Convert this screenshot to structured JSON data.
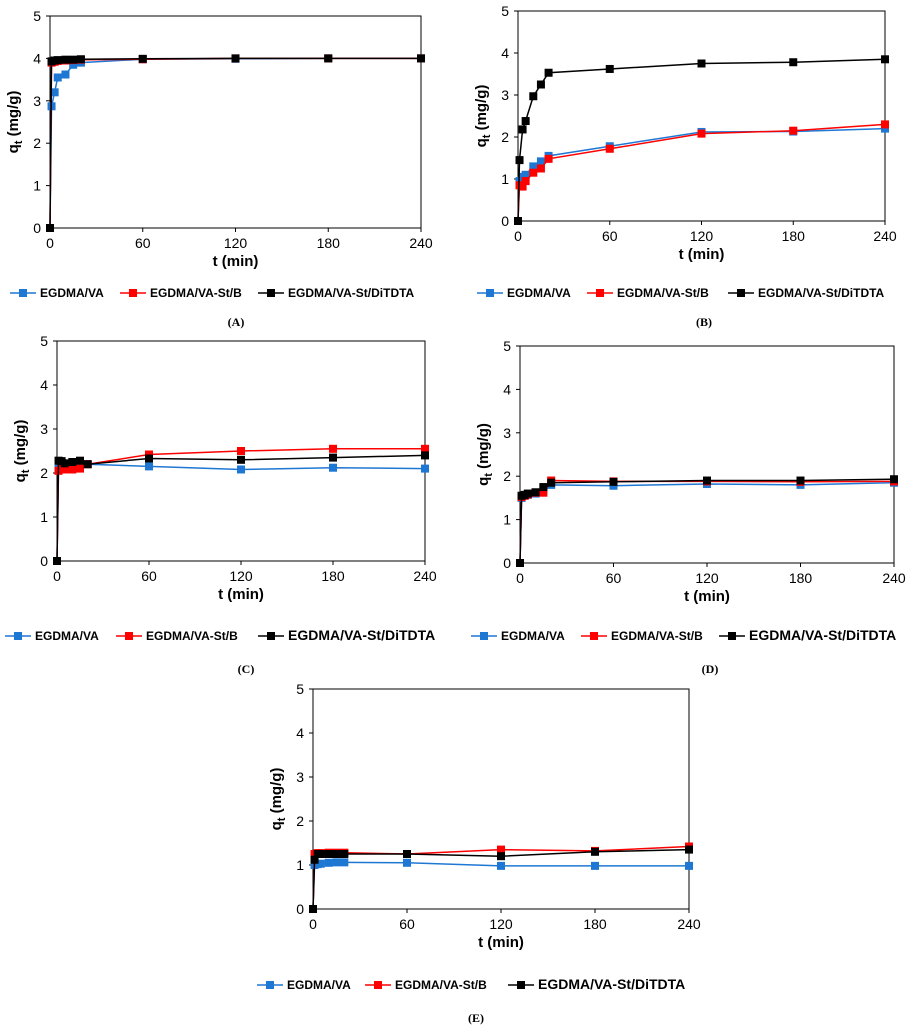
{
  "figure": {
    "colors": {
      "EGDMA/VA": "#1f77d4",
      "EGDMA/VA-St/B": "#ff0000",
      "EGDMA/VA-St/DiTDTA": "#000000"
    }
  },
  "chart_data": [
    {
      "id": "A",
      "panel_label": "(A)",
      "type": "line",
      "xlabel": "t (min)",
      "ylabel_main": "q",
      "ylabel_sub": "t",
      "ylabel_rest": " (mg/g)",
      "xlim": [
        0,
        240
      ],
      "ylim": [
        0,
        5
      ],
      "xticks": [
        0,
        60,
        120,
        180,
        240
      ],
      "yticks": [
        0,
        1,
        2,
        3,
        4,
        5
      ],
      "legend": [
        "EGDMA/VA",
        "EGDMA/VA-St/B",
        "EGDMA/VA-St/DiTDTA"
      ],
      "legend_large_last": false,
      "series": [
        {
          "name": "EGDMA/VA",
          "color": "#1f77d4",
          "points": [
            [
              0,
              0
            ],
            [
              1,
              2.87
            ],
            [
              3,
              3.2
            ],
            [
              5,
              3.55
            ],
            [
              10,
              3.62
            ],
            [
              15,
              3.85
            ],
            [
              20,
              3.9
            ],
            [
              60,
              3.98
            ],
            [
              120,
              3.99
            ],
            [
              180,
              4.0
            ],
            [
              240,
              4.0
            ]
          ]
        },
        {
          "name": "EGDMA/VA-St/B",
          "color": "#ff0000",
          "points": [
            [
              0,
              0
            ],
            [
              1,
              3.9
            ],
            [
              3,
              3.92
            ],
            [
              5,
              3.94
            ],
            [
              10,
              3.95
            ],
            [
              15,
              3.96
            ],
            [
              20,
              3.97
            ],
            [
              60,
              3.98
            ],
            [
              120,
              4.0
            ],
            [
              180,
              4.0
            ],
            [
              240,
              4.0
            ]
          ]
        },
        {
          "name": "EGDMA/VA-St/DiTDTA",
          "color": "#000000",
          "points": [
            [
              0,
              0
            ],
            [
              1,
              3.93
            ],
            [
              3,
              3.95
            ],
            [
              5,
              3.96
            ],
            [
              10,
              3.97
            ],
            [
              15,
              3.97
            ],
            [
              20,
              3.98
            ],
            [
              60,
              3.99
            ],
            [
              120,
              4.0
            ],
            [
              180,
              4.0
            ],
            [
              240,
              4.0
            ]
          ]
        }
      ]
    },
    {
      "id": "B",
      "panel_label": "(B)",
      "type": "line",
      "xlabel": "t (min)",
      "ylabel_main": "q",
      "ylabel_sub": "t",
      "ylabel_rest": " (mg/g)",
      "xlim": [
        0,
        240
      ],
      "ylim": [
        0,
        5
      ],
      "xticks": [
        0,
        60,
        120,
        180,
        240
      ],
      "yticks": [
        0,
        1,
        2,
        3,
        4,
        5
      ],
      "legend": [
        "EGDMA/VA",
        "EGDMA/VA-St/B",
        "EGDMA/VA-St/DiTDTA"
      ],
      "legend_large_last": false,
      "series": [
        {
          "name": "EGDMA/VA",
          "color": "#1f77d4",
          "points": [
            [
              0,
              0
            ],
            [
              1,
              0.95
            ],
            [
              3,
              1.05
            ],
            [
              5,
              1.1
            ],
            [
              10,
              1.3
            ],
            [
              15,
              1.42
            ],
            [
              20,
              1.55
            ],
            [
              60,
              1.78
            ],
            [
              120,
              2.12
            ],
            [
              180,
              2.13
            ],
            [
              240,
              2.2
            ]
          ]
        },
        {
          "name": "EGDMA/VA-St/B",
          "color": "#ff0000",
          "points": [
            [
              0,
              0
            ],
            [
              1,
              0.85
            ],
            [
              3,
              0.82
            ],
            [
              5,
              0.95
            ],
            [
              10,
              1.15
            ],
            [
              15,
              1.25
            ],
            [
              20,
              1.48
            ],
            [
              60,
              1.72
            ],
            [
              120,
              2.08
            ],
            [
              180,
              2.15
            ],
            [
              240,
              2.3
            ]
          ]
        },
        {
          "name": "EGDMA/VA-St/DiTDTA",
          "color": "#000000",
          "points": [
            [
              0,
              0
            ],
            [
              1,
              1.45
            ],
            [
              3,
              2.18
            ],
            [
              5,
              2.38
            ],
            [
              10,
              2.97
            ],
            [
              15,
              3.25
            ],
            [
              20,
              3.53
            ],
            [
              60,
              3.62
            ],
            [
              120,
              3.75
            ],
            [
              180,
              3.78
            ],
            [
              240,
              3.85
            ]
          ]
        }
      ]
    },
    {
      "id": "C",
      "panel_label": "(C)",
      "type": "line",
      "xlabel": "t (min)",
      "ylabel_main": "q",
      "ylabel_sub": "t",
      "ylabel_rest": " (mg/g)",
      "xlim": [
        0,
        240
      ],
      "ylim": [
        0,
        5
      ],
      "xticks": [
        0,
        60,
        120,
        180,
        240
      ],
      "yticks": [
        0,
        1,
        2,
        3,
        4,
        5
      ],
      "legend": [
        "EGDMA/VA",
        "EGDMA/VA-St/B",
        "EGDMA/VA-St/DiTDTA"
      ],
      "legend_large_last": true,
      "series": [
        {
          "name": "EGDMA/VA",
          "color": "#1f77d4",
          "points": [
            [
              0,
              0
            ],
            [
              1,
              2.1
            ],
            [
              3,
              2.12
            ],
            [
              5,
              2.15
            ],
            [
              10,
              2.15
            ],
            [
              15,
              2.18
            ],
            [
              20,
              2.2
            ],
            [
              60,
              2.15
            ],
            [
              120,
              2.08
            ],
            [
              180,
              2.12
            ],
            [
              240,
              2.1
            ]
          ]
        },
        {
          "name": "EGDMA/VA-St/B",
          "color": "#ff0000",
          "points": [
            [
              0,
              0
            ],
            [
              1,
              2.05
            ],
            [
              3,
              2.1
            ],
            [
              5,
              2.08
            ],
            [
              10,
              2.08
            ],
            [
              15,
              2.1
            ],
            [
              20,
              2.2
            ],
            [
              60,
              2.42
            ],
            [
              120,
              2.5
            ],
            [
              180,
              2.55
            ],
            [
              240,
              2.55
            ]
          ]
        },
        {
          "name": "EGDMA/VA-St/DiTDTA",
          "color": "#000000",
          "points": [
            [
              0,
              0
            ],
            [
              1,
              2.28
            ],
            [
              3,
              2.27
            ],
            [
              5,
              2.22
            ],
            [
              10,
              2.25
            ],
            [
              15,
              2.28
            ],
            [
              20,
              2.2
            ],
            [
              60,
              2.33
            ],
            [
              120,
              2.3
            ],
            [
              180,
              2.35
            ],
            [
              240,
              2.4
            ]
          ]
        }
      ]
    },
    {
      "id": "D",
      "panel_label": "(D)",
      "type": "line",
      "xlabel": "t (min)",
      "ylabel_main": "q",
      "ylabel_sub": "t",
      "ylabel_rest": " (mg/g)",
      "xlim": [
        0,
        240
      ],
      "ylim": [
        0,
        5
      ],
      "xticks": [
        0,
        60,
        120,
        180,
        240
      ],
      "yticks": [
        0,
        1,
        2,
        3,
        4,
        5
      ],
      "legend": [
        "EGDMA/VA",
        "EGDMA/VA-St/B",
        "EGDMA/VA-St/DiTDTA"
      ],
      "legend_large_last": true,
      "series": [
        {
          "name": "EGDMA/VA",
          "color": "#1f77d4",
          "points": [
            [
              0,
              0
            ],
            [
              1,
              1.5
            ],
            [
              3,
              1.55
            ],
            [
              5,
              1.57
            ],
            [
              10,
              1.6
            ],
            [
              15,
              1.7
            ],
            [
              20,
              1.8
            ],
            [
              60,
              1.78
            ],
            [
              120,
              1.82
            ],
            [
              180,
              1.8
            ],
            [
              240,
              1.85
            ]
          ]
        },
        {
          "name": "EGDMA/VA-St/B",
          "color": "#ff0000",
          "points": [
            [
              0,
              0
            ],
            [
              1,
              1.52
            ],
            [
              3,
              1.55
            ],
            [
              5,
              1.58
            ],
            [
              10,
              1.62
            ],
            [
              15,
              1.62
            ],
            [
              20,
              1.9
            ],
            [
              60,
              1.88
            ],
            [
              120,
              1.88
            ],
            [
              180,
              1.87
            ],
            [
              240,
              1.88
            ]
          ]
        },
        {
          "name": "EGDMA/VA-St/DiTDTA",
          "color": "#000000",
          "points": [
            [
              0,
              0
            ],
            [
              1,
              1.55
            ],
            [
              3,
              1.57
            ],
            [
              5,
              1.6
            ],
            [
              10,
              1.63
            ],
            [
              15,
              1.75
            ],
            [
              20,
              1.85
            ],
            [
              60,
              1.87
            ],
            [
              120,
              1.9
            ],
            [
              180,
              1.9
            ],
            [
              240,
              1.93
            ]
          ]
        }
      ]
    },
    {
      "id": "E",
      "panel_label": "(E)",
      "type": "line",
      "xlabel": "t (min)",
      "ylabel_main": "q",
      "ylabel_sub": "t",
      "ylabel_rest": " (mg/g)",
      "xlim": [
        0,
        240
      ],
      "ylim": [
        0,
        5
      ],
      "xticks": [
        0,
        60,
        120,
        180,
        240
      ],
      "yticks": [
        0,
        1,
        2,
        3,
        4,
        5
      ],
      "legend": [
        "EGDMA/VA",
        "EGDMA/VA-St/B",
        "EGDMA/VA-St/DiTDTA"
      ],
      "legend_large_last": true,
      "series": [
        {
          "name": "EGDMA/VA",
          "color": "#1f77d4",
          "points": [
            [
              0,
              0
            ],
            [
              1,
              1.0
            ],
            [
              3,
              1.02
            ],
            [
              5,
              1.03
            ],
            [
              10,
              1.05
            ],
            [
              15,
              1.06
            ],
            [
              20,
              1.06
            ],
            [
              60,
              1.05
            ],
            [
              120,
              0.98
            ],
            [
              180,
              0.98
            ],
            [
              240,
              0.98
            ]
          ]
        },
        {
          "name": "EGDMA/VA-St/B",
          "color": "#ff0000",
          "points": [
            [
              0,
              0
            ],
            [
              1,
              1.25
            ],
            [
              3,
              1.27
            ],
            [
              5,
              1.27
            ],
            [
              10,
              1.28
            ],
            [
              15,
              1.28
            ],
            [
              20,
              1.28
            ],
            [
              60,
              1.25
            ],
            [
              120,
              1.35
            ],
            [
              180,
              1.32
            ],
            [
              240,
              1.42
            ]
          ]
        },
        {
          "name": "EGDMA/VA-St/DiTDTA",
          "color": "#000000",
          "points": [
            [
              0,
              0
            ],
            [
              1,
              1.12
            ],
            [
              3,
              1.25
            ],
            [
              5,
              1.25
            ],
            [
              10,
              1.25
            ],
            [
              15,
              1.25
            ],
            [
              20,
              1.25
            ],
            [
              60,
              1.25
            ],
            [
              120,
              1.2
            ],
            [
              180,
              1.3
            ],
            [
              240,
              1.35
            ]
          ]
        }
      ]
    }
  ]
}
